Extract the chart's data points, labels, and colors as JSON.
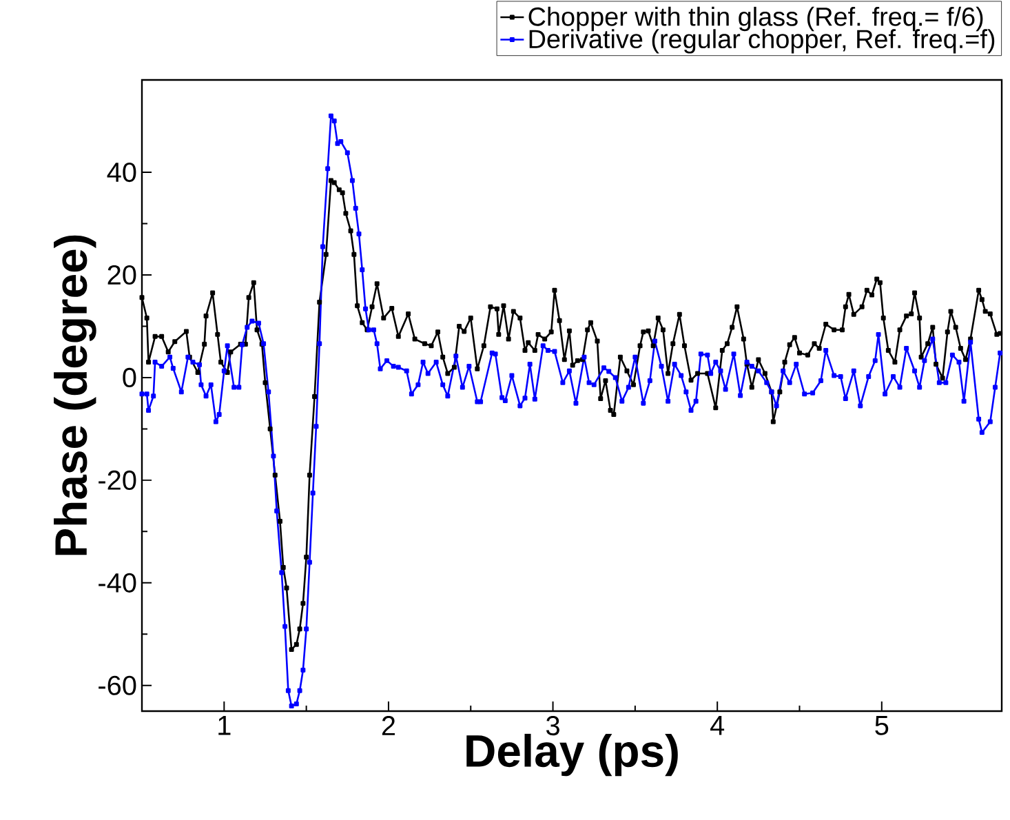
{
  "chart_data": {
    "type": "line",
    "xlabel": "Delay (ps)",
    "ylabel": "Phase (degree)",
    "xlim": [
      0.5,
      5.73
    ],
    "ylim": [
      -65,
      58
    ],
    "xticks": [
      1,
      2,
      3,
      4,
      5
    ],
    "yticks": [
      -60,
      -40,
      -20,
      0,
      20,
      40
    ],
    "legend": "top right",
    "marker": "square",
    "line_style": "solid",
    "series": [
      {
        "name": "Chopper with thin glass (Ref. freq.= f/6)",
        "color": "#000000",
        "x": [
          0.5,
          0.53,
          0.54,
          0.58,
          0.62,
          0.66,
          0.7,
          0.77,
          0.79,
          0.84,
          0.88,
          0.89,
          0.93,
          0.96,
          0.98,
          1.02,
          1.04,
          1.1,
          1.13,
          1.15,
          1.18,
          1.2,
          1.23,
          1.25,
          1.28,
          1.31,
          1.34,
          1.36,
          1.38,
          1.41,
          1.44,
          1.46,
          1.48,
          1.5,
          1.52,
          1.55,
          1.58,
          1.62,
          1.65,
          1.67,
          1.7,
          1.72,
          1.74,
          1.77,
          1.79,
          1.81,
          1.84,
          1.87,
          1.9,
          1.93,
          1.97,
          2.02,
          2.06,
          2.12,
          2.16,
          2.22,
          2.26,
          2.3,
          2.33,
          2.36,
          2.4,
          2.43,
          2.46,
          2.5,
          2.54,
          2.58,
          2.62,
          2.66,
          2.67,
          2.7,
          2.73,
          2.76,
          2.8,
          2.83,
          2.85,
          2.89,
          2.91,
          2.95,
          2.99,
          3.01,
          3.04,
          3.07,
          3.1,
          3.12,
          3.15,
          3.18,
          3.21,
          3.23,
          3.27,
          3.29,
          3.32,
          3.35,
          3.37,
          3.41,
          3.45,
          3.49,
          3.53,
          3.55,
          3.58,
          3.61,
          3.64,
          3.67,
          3.7,
          3.73,
          3.77,
          3.8,
          3.84,
          3.88,
          3.94,
          3.99,
          4.03,
          4.06,
          4.09,
          4.12,
          4.16,
          4.18,
          4.21,
          4.25,
          4.29,
          4.33,
          4.34,
          4.38,
          4.41,
          4.44,
          4.47,
          4.5,
          4.55,
          4.59,
          4.62,
          4.66,
          4.71,
          4.76,
          4.78,
          4.8,
          4.83,
          4.88,
          4.91,
          4.94,
          4.97,
          4.99,
          5.01,
          5.04,
          5.08,
          5.11,
          5.15,
          5.18,
          5.2,
          5.23,
          5.24,
          5.28,
          5.31,
          5.33,
          5.37,
          5.4,
          5.42,
          5.45,
          5.48,
          5.51,
          5.54,
          5.59,
          5.61,
          5.63,
          5.66,
          5.7,
          5.72
        ],
        "values": [
          15.6,
          11.6,
          3,
          8,
          8,
          5,
          7,
          9,
          4,
          1,
          6.5,
          12,
          16.5,
          8.4,
          3,
          1,
          5,
          6.5,
          6.5,
          15.6,
          18.5,
          9.3,
          6.5,
          -1,
          -10,
          -19,
          -28,
          -37,
          -41,
          -53,
          -52,
          -49,
          -44,
          -35,
          -19,
          -3.7,
          14.7,
          24,
          38.4,
          38,
          36.6,
          36,
          32,
          28.6,
          24,
          14,
          10.7,
          9.3,
          13.8,
          18.3,
          11.6,
          13.5,
          8,
          12.4,
          7.5,
          6.6,
          6.2,
          8.9,
          4,
          0.8,
          2,
          10,
          9,
          11.6,
          1.7,
          6.2,
          13.8,
          13.4,
          8.4,
          14,
          7.5,
          12.9,
          11.6,
          5.3,
          6.8,
          5.3,
          8.4,
          7.5,
          8.9,
          17,
          11.1,
          3.5,
          9.1,
          2.4,
          3.3,
          3.5,
          9.3,
          10.7,
          7.1,
          -4.1,
          -0.6,
          -6.4,
          -7.2,
          4,
          1.3,
          -1.4,
          6.2,
          8.9,
          9.1,
          6.2,
          11.6,
          9.3,
          0.8,
          6.6,
          12.3,
          6.2,
          -0.5,
          0.8,
          0.8,
          -5.9,
          5.3,
          6.6,
          9.8,
          13.8,
          7.5,
          2.6,
          -1.9,
          3.5,
          0.8,
          -2.8,
          -8.6,
          -2.8,
          3,
          6.4,
          7.8,
          4.8,
          4.4,
          6.6,
          5.7,
          10.4,
          9.3,
          9.3,
          13.8,
          16.2,
          12.3,
          13.8,
          17,
          16.1,
          19.2,
          18.5,
          11.6,
          5.3,
          3,
          9.3,
          12,
          12.4,
          16.5,
          11.6,
          4,
          6.6,
          9.8,
          2.6,
          -0.1,
          8.9,
          12.9,
          9.8,
          5.7,
          3.5,
          7.5,
          17,
          15.2,
          12.9,
          12.4,
          8.4,
          8.6
        ]
      },
      {
        "name": "Derivative (regular chopper, Ref. freq.=f)",
        "color": "#0000ff",
        "x": [
          0.5,
          0.53,
          0.54,
          0.57,
          0.58,
          0.62,
          0.67,
          0.69,
          0.74,
          0.78,
          0.81,
          0.85,
          0.86,
          0.89,
          0.92,
          0.95,
          0.97,
          1.0,
          1.02,
          1.06,
          1.09,
          1.11,
          1.14,
          1.17,
          1.21,
          1.24,
          1.27,
          1.3,
          1.32,
          1.35,
          1.37,
          1.39,
          1.41,
          1.44,
          1.46,
          1.48,
          1.5,
          1.52,
          1.54,
          1.56,
          1.58,
          1.6,
          1.63,
          1.65,
          1.67,
          1.69,
          1.71,
          1.75,
          1.78,
          1.8,
          1.82,
          1.84,
          1.86,
          1.88,
          1.91,
          1.93,
          1.95,
          1.99,
          2.03,
          2.06,
          2.11,
          2.14,
          2.18,
          2.21,
          2.24,
          2.29,
          2.33,
          2.36,
          2.41,
          2.45,
          2.49,
          2.54,
          2.56,
          2.63,
          2.65,
          2.69,
          2.71,
          2.75,
          2.8,
          2.83,
          2.86,
          2.89,
          2.94,
          2.97,
          3.01,
          3.06,
          3.1,
          3.14,
          3.19,
          3.22,
          3.25,
          3.31,
          3.34,
          3.38,
          3.42,
          3.46,
          3.5,
          3.55,
          3.59,
          3.62,
          3.66,
          3.7,
          3.74,
          3.78,
          3.81,
          3.84,
          3.87,
          3.9,
          3.94,
          3.96,
          3.99,
          4.02,
          4.05,
          4.1,
          4.14,
          4.18,
          4.21,
          4.25,
          4.3,
          4.33,
          4.36,
          4.4,
          4.44,
          4.48,
          4.53,
          4.58,
          4.63,
          4.66,
          4.71,
          4.75,
          4.78,
          4.83,
          4.87,
          4.92,
          4.96,
          4.98,
          5.02,
          5.07,
          5.11,
          5.15,
          5.2,
          5.23,
          5.26,
          5.31,
          5.35,
          5.39,
          5.43,
          5.47,
          5.5,
          5.54,
          5.59,
          5.61,
          5.66,
          5.69,
          5.72
        ],
        "values": [
          -3.2,
          -3.2,
          -6.4,
          -3.6,
          3,
          2.2,
          4,
          1.8,
          -2.8,
          4,
          3,
          2.5,
          -1.4,
          -3.6,
          -1.4,
          -8.6,
          -7.2,
          1.3,
          6.2,
          -1.9,
          -1.9,
          6.4,
          9.8,
          11,
          10.6,
          6.6,
          -2.8,
          -15.3,
          -26,
          -38,
          -48.5,
          -61,
          -64,
          -63.6,
          -61,
          -57,
          -49,
          -36,
          -22.5,
          -9.5,
          6.6,
          25.5,
          40.7,
          51,
          50,
          45.6,
          46,
          43.8,
          38.4,
          33,
          28,
          21,
          13.4,
          9.3,
          9.3,
          6.6,
          1.7,
          3.3,
          2.2,
          2,
          1.3,
          -3.2,
          -1.4,
          3,
          0.8,
          3,
          -1.4,
          -3.6,
          4.2,
          -1.9,
          2.2,
          -4.7,
          -4.7,
          4.8,
          4.6,
          -3.9,
          -4.5,
          0.4,
          -5.5,
          -4,
          2.6,
          -4.2,
          6.2,
          5.3,
          5.1,
          -1,
          1.3,
          -5,
          4,
          -1,
          -1.4,
          1.9,
          1.2,
          0,
          -4.6,
          -1.9,
          4,
          -5,
          -0.6,
          7.1,
          2.2,
          -4.6,
          2.6,
          0.4,
          -2.8,
          -6.4,
          -4.6,
          4.6,
          4.4,
          0.8,
          3,
          1.3,
          -2.3,
          4.6,
          -3.5,
          3,
          2.2,
          1.3,
          -1,
          -2.8,
          -5.5,
          1.3,
          -1,
          2.6,
          -3.2,
          -3,
          -0.6,
          5.3,
          0.4,
          0.2,
          -4.1,
          1.3,
          -5.5,
          0.2,
          3.3,
          8.4,
          -3.2,
          0.2,
          -1.9,
          5.7,
          1.3,
          -1.9,
          3.3,
          7.5,
          -1,
          -1,
          4.4,
          3,
          -4.6,
          6.9,
          -8.1,
          -10.7,
          -8.6,
          -1.9,
          4.8
        ]
      }
    ]
  }
}
